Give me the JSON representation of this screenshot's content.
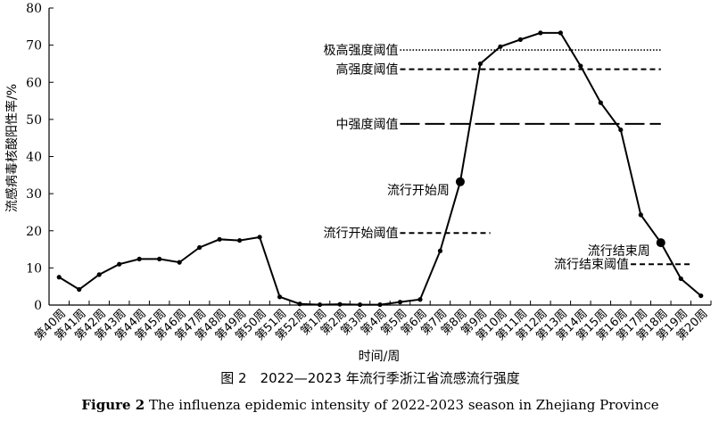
{
  "chart_data": {
    "type": "line",
    "xlabel": "时间/周",
    "ylabel": "流感病毒核酸阳性率/%",
    "ylim": [
      0,
      80
    ],
    "yticks": [
      0,
      10,
      20,
      30,
      40,
      50,
      60,
      70,
      80
    ],
    "grid": false,
    "categories": [
      "第40周",
      "第41周",
      "第42周",
      "第43周",
      "第44周",
      "第45周",
      "第46周",
      "第47周",
      "第48周",
      "第49周",
      "第50周",
      "第51周",
      "第52周",
      "第1周",
      "第2周",
      "第3周",
      "第4周",
      "第5周",
      "第6周",
      "第7周",
      "第8周",
      "第9周",
      "第10周",
      "第11周",
      "第12周",
      "第13周",
      "第14周",
      "第15周",
      "第16周",
      "第17周",
      "第18周",
      "第19周",
      "第20周"
    ],
    "values": [
      7.5,
      4.2,
      8.2,
      11,
      12.4,
      12.4,
      11.5,
      15.5,
      17.7,
      17.4,
      18.3,
      2.2,
      0.3,
      0.1,
      0.2,
      0.1,
      0.1,
      0.8,
      1.5,
      14.6,
      33.2,
      65,
      69.6,
      71.5,
      73.3,
      73.3,
      64.4,
      54.5,
      47.2,
      24.3,
      16.8,
      7.1,
      2.5
    ],
    "highlights": [
      {
        "index": 20,
        "label": "流行开始周"
      },
      {
        "index": 30,
        "label": "流行结束周"
      }
    ],
    "thresholds": [
      {
        "label": "极高强度阈值",
        "value": 68.7,
        "style": "dotted",
        "from_index": 17.5,
        "to_index": 30.5
      },
      {
        "label": "高强度阈值",
        "value": 63.5,
        "style": "short-dash",
        "from_index": 17.5,
        "to_index": 30.5
      },
      {
        "label": "中强度阈值",
        "value": 48.8,
        "style": "long-dash",
        "from_index": 17.5,
        "to_index": 30.5
      },
      {
        "label": "流行开始阈值",
        "value": 19.4,
        "style": "short-dash",
        "from_index": 17.5,
        "to_index": 22.0
      },
      {
        "label": "流行结束阈值",
        "value": 11.0,
        "style": "short-dash",
        "from_index": 29.0,
        "to_index": 32.0
      }
    ]
  },
  "caption": {
    "zh": "图 2　2022—2023 年流行季浙江省流感流行强度",
    "en_prefix": "Figure 2",
    "en": "The influenza epidemic intensity of 2022-2023 season in Zhejiang Province"
  },
  "colors": {
    "line": "#000000",
    "background": "#ffffff"
  }
}
